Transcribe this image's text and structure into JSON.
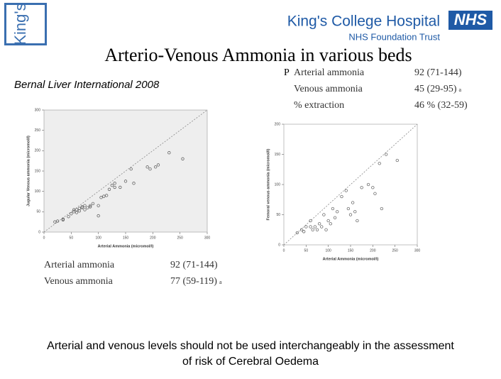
{
  "header": {
    "brand": "King's",
    "hospital": "King's College Hospital",
    "nhs": "NHS",
    "trust": "NHS Foundation Trust"
  },
  "title": "Arterio-Venous Ammonia in various beds",
  "source": "Bernal Liver International 2008",
  "right_stats": {
    "marker": "P",
    "rows": [
      {
        "label": "Arterial ammonia",
        "value": "92 (71-144)"
      },
      {
        "label": "Venous ammonia",
        "value": "45 (29-95)",
        "note": "a"
      },
      {
        "label": "% extraction",
        "value": "46 % (32-59)"
      }
    ]
  },
  "left_stats": {
    "rows": [
      {
        "label": "Arterial ammonia",
        "value": "92 (71-144)"
      },
      {
        "label": "Venous ammonia",
        "value": "77 (59-119)",
        "note": "a"
      }
    ]
  },
  "footer": [
    "Arterial and venous levels should not be used interchangeably in the assessment",
    "of risk of Cerebral Oedema"
  ],
  "chart_data": [
    {
      "type": "scatter",
      "x_label": "Arterial Ammonia (micromol/l)",
      "y_label": "Jugular Venous ammonia (micromol/l)",
      "color": "#555555",
      "x": [
        20,
        25,
        35,
        35,
        45,
        50,
        55,
        55,
        60,
        60,
        65,
        65,
        70,
        70,
        75,
        75,
        80,
        85,
        85,
        90,
        100,
        100,
        105,
        110,
        115,
        120,
        125,
        130,
        130,
        140,
        150,
        160,
        165,
        190,
        195,
        205,
        210,
        230,
        255
      ],
      "values": [
        25,
        27,
        30,
        32,
        38,
        45,
        50,
        55,
        48,
        55,
        52,
        58,
        60,
        62,
        55,
        65,
        60,
        62,
        65,
        70,
        65,
        40,
        85,
        88,
        90,
        105,
        115,
        110,
        120,
        110,
        125,
        155,
        120,
        160,
        155,
        160,
        165,
        195,
        180
      ],
      "xlim": [
        0,
        300
      ],
      "xticks": [
        0,
        50,
        100,
        150,
        200,
        250,
        300
      ],
      "ylim": [
        0,
        300
      ],
      "yticks": [
        0,
        50,
        100,
        150,
        200,
        250,
        300
      ],
      "background": "#eeeeee"
    },
    {
      "type": "scatter",
      "x_label": "Arterial Ammonia (micromol/l)",
      "y_label": "Femoral venous ammonia (micromol/l)",
      "color": "#555555",
      "x": [
        30,
        40,
        45,
        50,
        60,
        60,
        65,
        70,
        75,
        80,
        85,
        90,
        95,
        100,
        105,
        110,
        115,
        120,
        130,
        140,
        145,
        150,
        155,
        160,
        165,
        175,
        190,
        200,
        205,
        215,
        220,
        230,
        255
      ],
      "values": [
        20,
        25,
        22,
        30,
        30,
        40,
        25,
        30,
        25,
        35,
        30,
        50,
        25,
        40,
        35,
        60,
        45,
        55,
        80,
        90,
        60,
        50,
        70,
        55,
        40,
        95,
        100,
        95,
        85,
        135,
        60,
        150,
        140
      ],
      "xlim": [
        0,
        300
      ],
      "xticks": [
        0,
        50,
        100,
        150,
        200,
        250,
        300
      ],
      "ylim": [
        0,
        200
      ],
      "yticks": [
        0,
        50,
        100,
        150,
        200
      ],
      "background": "#ffffff"
    }
  ]
}
